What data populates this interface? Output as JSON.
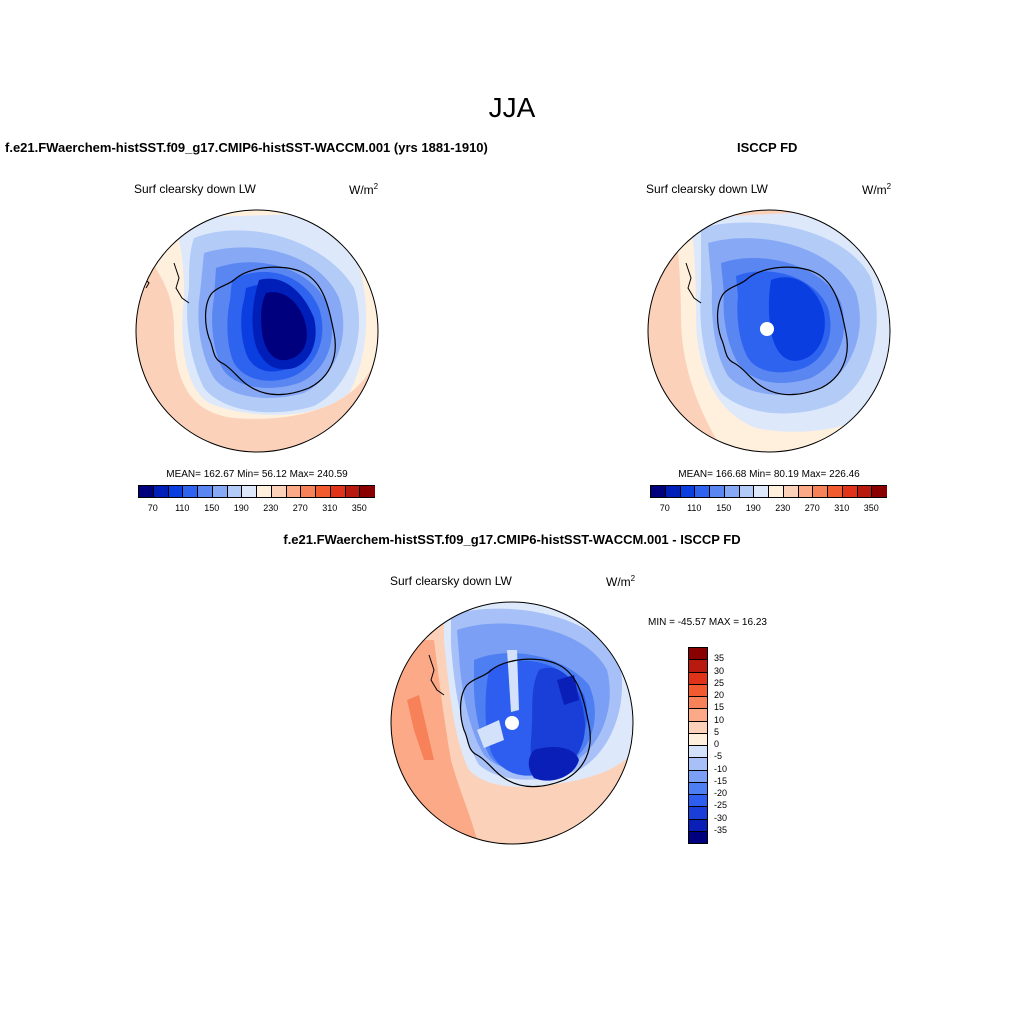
{
  "page_title": "JJA",
  "panels": [
    {
      "title": "f.e21.FWaerchem-histSST.f09_g17.CMIP6-histSST-WACCM.001 (yrs 1881-1910)",
      "variable": "Surf clearsky down LW",
      "units": "W/m",
      "units_sup": "2",
      "stats": "MEAN= 162.67  Min=  56.12  Max= 240.59",
      "mean": 162.67,
      "min": 56.12,
      "max": 240.59
    },
    {
      "title": "ISCCP FD",
      "variable": "Surf clearsky down LW",
      "units": "W/m",
      "units_sup": "2",
      "stats": "MEAN= 166.68  Min=  80.19  Max= 226.46",
      "mean": 166.68,
      "min": 80.19,
      "max": 226.46
    },
    {
      "title": "f.e21.FWaerchem-histSST.f09_g17.CMIP6-histSST-WACCM.001 - ISCCP FD",
      "variable": "Surf clearsky down LW",
      "units": "W/m",
      "units_sup": "2",
      "stats": "MIN = -45.57 MAX =  16.23",
      "min": -45.57,
      "max": 16.23
    }
  ],
  "colorbar_abs": {
    "colors": [
      "#00007f",
      "#001fb8",
      "#0a3ee0",
      "#2e63f0",
      "#5a86f2",
      "#87a9f5",
      "#b3cbf7",
      "#dde9fb",
      "#fff0dd",
      "#fcd1ba",
      "#fba986",
      "#f7825a",
      "#f25a30",
      "#e0331a",
      "#b81a0e",
      "#8a0000"
    ],
    "tick_labels": [
      "70",
      "110",
      "150",
      "190",
      "230",
      "270",
      "310",
      "350"
    ]
  },
  "colorbar_diff": {
    "colors": [
      "#00007f",
      "#0a1fb8",
      "#1a3fd8",
      "#2e5ef0",
      "#4d7ff2",
      "#7a9ff5",
      "#a7c0f7",
      "#d4e1fa",
      "#fff0dd",
      "#fcd1ba",
      "#fba986",
      "#f7825a",
      "#f25a30",
      "#e0331a",
      "#b81a0e",
      "#8a0000"
    ],
    "tick_labels": [
      "35",
      "30",
      "25",
      "20",
      "15",
      "10",
      "5",
      "0",
      "-5",
      "-10",
      "-15",
      "-20",
      "-25",
      "-30",
      "-35"
    ]
  }
}
